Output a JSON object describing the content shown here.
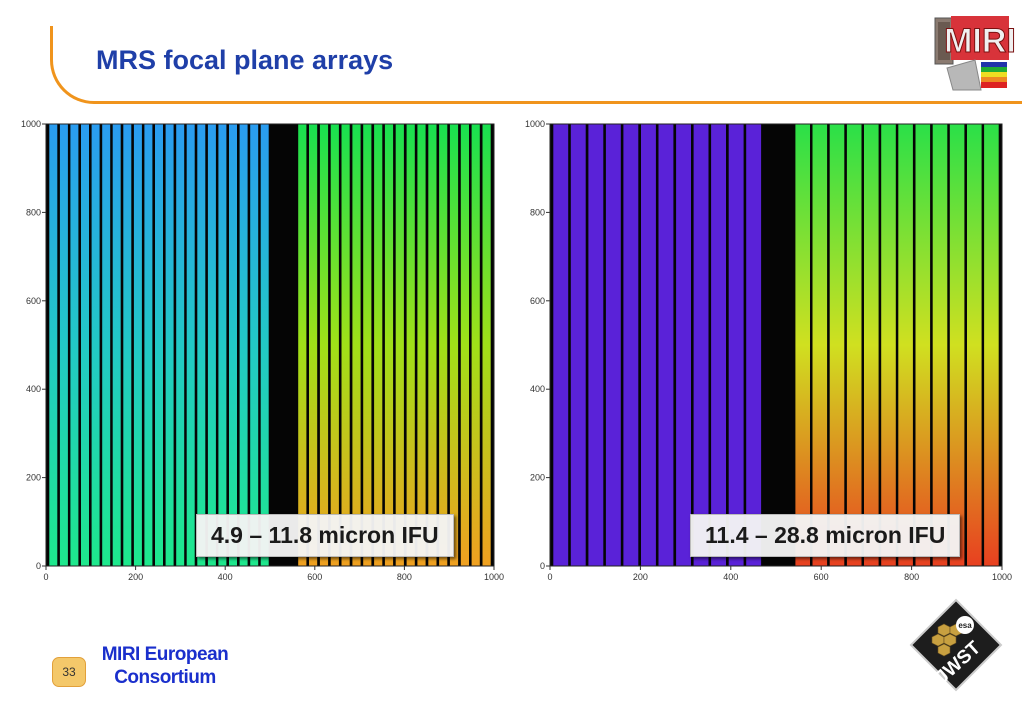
{
  "slide": {
    "title": "MRS focal plane arrays",
    "page_number": "33",
    "footer_line1": "MIRI European",
    "footer_line2": "Consortium"
  },
  "logos": {
    "miri": {
      "icon": "miri-logo",
      "text": "MIRI"
    },
    "jwst": {
      "icon": "jwst-logo",
      "text": "JWST",
      "agency": "esa"
    }
  },
  "colors": {
    "title": "#1f3fa8",
    "accent_line": "#f0941c",
    "footer_text": "#1a2fcc"
  },
  "chart_data": [
    {
      "type": "heatmap",
      "title": "",
      "xlabel": "",
      "ylabel": "",
      "xlim": [
        0,
        1000
      ],
      "ylim": [
        0,
        1000
      ],
      "x_ticks": [
        "0",
        "200",
        "400",
        "600",
        "800",
        "1000"
      ],
      "y_ticks": [
        "0",
        "200",
        "400",
        "600",
        "800",
        "1000"
      ],
      "label": "4.9 – 11.8 micron IFU",
      "left_half": {
        "slices": 21,
        "colors": [
          "#2a9cf0",
          "#22c8c6",
          "#1ee88c"
        ]
      },
      "right_half": {
        "slices": 18,
        "colors": [
          "#18e050",
          "#a0e018",
          "#f0a020"
        ]
      },
      "gap": [
        500,
        560
      ]
    },
    {
      "type": "heatmap",
      "title": "",
      "xlabel": "",
      "ylabel": "",
      "xlim": [
        0,
        1000
      ],
      "ylim": [
        0,
        1000
      ],
      "x_ticks": [
        "0",
        "200",
        "400",
        "600",
        "800",
        "1000"
      ],
      "y_ticks": [
        "0",
        "200",
        "400",
        "600",
        "800",
        "1000"
      ],
      "label": "11.4 – 28.8 micron IFU",
      "left_half": {
        "slices": 12,
        "colors": [
          "#5a22d8",
          "#5a22d8",
          "#5a22d8"
        ]
      },
      "right_half": {
        "slices": 12,
        "colors": [
          "#2ae048",
          "#d0e020",
          "#e84020"
        ]
      },
      "gap": [
        470,
        540
      ]
    }
  ]
}
